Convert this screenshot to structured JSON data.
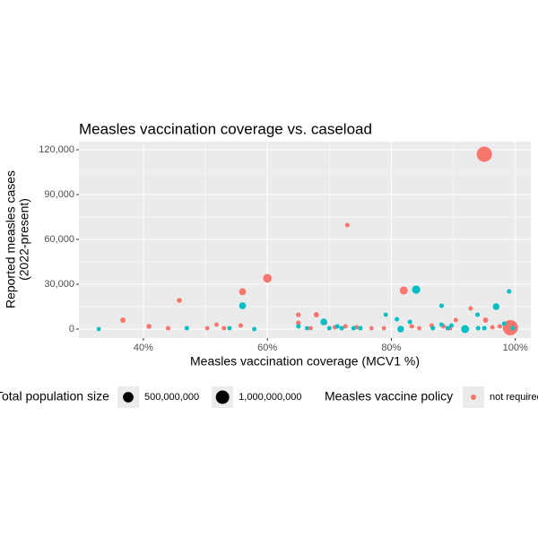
{
  "chart_data": {
    "type": "scatter",
    "title": "Measles vaccination coverage vs. caseload",
    "x_label": "Measles vaccination coverage (MCV1 %)",
    "y_label": [
      "Reported measles cases",
      "(2022-present)"
    ],
    "xlim": [
      29.6,
      102.5
    ],
    "ylim": [
      -6000,
      125400
    ],
    "xticks": [
      {
        "value": 40,
        "label": "40%"
      },
      {
        "value": 60,
        "label": "60%"
      },
      {
        "value": 80,
        "label": "80%"
      },
      {
        "value": 100,
        "label": "100%"
      }
    ],
    "yticks": [
      0,
      {
        "value": 30000,
        "label": "30,000"
      },
      {
        "value": 60000,
        "label": "60,000"
      },
      {
        "value": 90000,
        "label": "90,000"
      },
      {
        "value": 120000,
        "label": "120,000"
      }
    ],
    "grid": true,
    "size_legend": {
      "title": "Total population size",
      "values": [
        {
          "value": 500000000,
          "label": "500,000,000"
        },
        {
          "value": 1000000000,
          "label": "1,000,000,000"
        }
      ]
    },
    "color_legend_title": "Measles vaccine policy",
    "series": [
      {
        "name": "not required",
        "color": "#F8766D",
        "x": [
          95,
          99.2,
          72.9,
          60,
          82,
          56,
          45.8,
          36.7,
          40.9,
          44,
          50.3,
          51.8,
          53,
          55.7,
          65,
          65,
          67.9,
          67,
          69.3,
          70.9,
          72.6,
          74.4,
          76.8,
          78.8,
          83.3,
          84.5,
          86.5,
          88.4,
          89.5,
          90.4,
          92.8,
          95.2,
          96.3,
          97.5,
          100
        ],
        "values": [
          117000,
          1000,
          69600,
          34000,
          25800,
          25000,
          19200,
          6000,
          1800,
          600,
          600,
          3000,
          600,
          2400,
          9600,
          4200,
          9600,
          600,
          4200,
          1200,
          1800,
          1200,
          600,
          600,
          1800,
          600,
          2400,
          1800,
          600,
          6000,
          13800,
          6000,
          1200,
          1800,
          1200
        ],
        "sizes": [
          1400000000,
          1400000000,
          10000000,
          270000000,
          200000000,
          120000000,
          20000000,
          30000000,
          20000000,
          10000000,
          5000000,
          5000000,
          10000000,
          10000000,
          15000000,
          15000000,
          30000000,
          5000000,
          10000000,
          10000000,
          10000000,
          10000000,
          5000000,
          5000000,
          10000000,
          5000000,
          10000000,
          10000000,
          5000000,
          10000000,
          10000000,
          30000000,
          10000000,
          10000000,
          10000000
        ]
      },
      {
        "color": "#00BFC4",
        "x": [
          32.8,
          47,
          53.9,
          56,
          57.9,
          65,
          66.4,
          69.1,
          70,
          71.3,
          72,
          73.9,
          75,
          79.1,
          80.9,
          81.5,
          83,
          84,
          86.7,
          88.1,
          88.1,
          89.1,
          89.7,
          91.9,
          93.9,
          94,
          95,
          96.9,
          98.2,
          99,
          99.6
        ],
        "values": [
          0,
          600,
          600,
          15600,
          0,
          1800,
          600,
          4800,
          600,
          1800,
          600,
          600,
          600,
          9600,
          6600,
          0,
          4800,
          26400,
          600,
          15600,
          3000,
          600,
          2400,
          0,
          9600,
          600,
          600,
          15000,
          3600,
          25200,
          600
        ],
        "sizes": [
          5000000,
          10000000,
          5000000,
          120000000,
          5000000,
          10000000,
          5000000,
          100000000,
          10000000,
          10000000,
          10000000,
          10000000,
          10000000,
          5000000,
          10000000,
          100000000,
          10000000,
          220000000,
          10000000,
          10000000,
          10000000,
          10000000,
          10000000,
          200000000,
          10000000,
          10000000,
          10000000,
          100000000,
          10000000,
          10000000,
          10000000
        ]
      }
    ]
  }
}
